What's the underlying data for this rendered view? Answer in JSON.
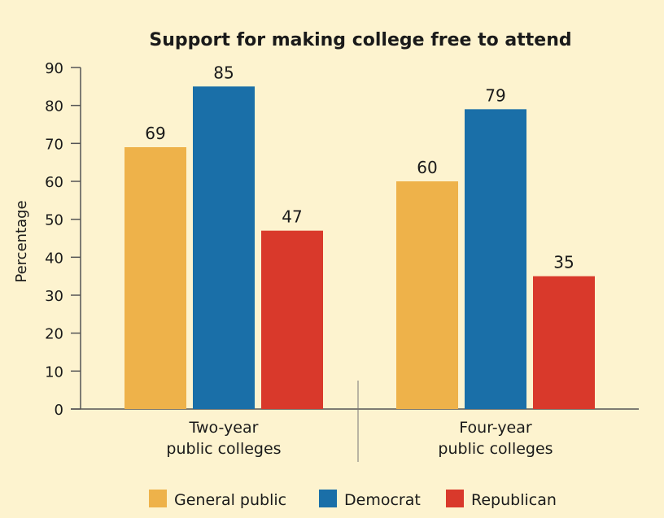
{
  "chart_data": {
    "type": "bar",
    "title": "Support for making college free to attend",
    "ylabel": "Percentage",
    "xlabel": "",
    "ylim": [
      0,
      90
    ],
    "yticks": [
      0,
      10,
      20,
      30,
      40,
      50,
      60,
      70,
      80,
      90
    ],
    "categories": [
      [
        "Two-year",
        "public colleges"
      ],
      [
        "Four-year",
        "public colleges"
      ]
    ],
    "series": [
      {
        "name": "General public",
        "color": "#eeb24a",
        "values": [
          69,
          60
        ]
      },
      {
        "name": "Democrat",
        "color": "#1a6fa8",
        "values": [
          85,
          79
        ]
      },
      {
        "name": "Republican",
        "color": "#d9392b",
        "values": [
          47,
          35
        ]
      }
    ],
    "legend_position": "bottom",
    "grid": false
  }
}
